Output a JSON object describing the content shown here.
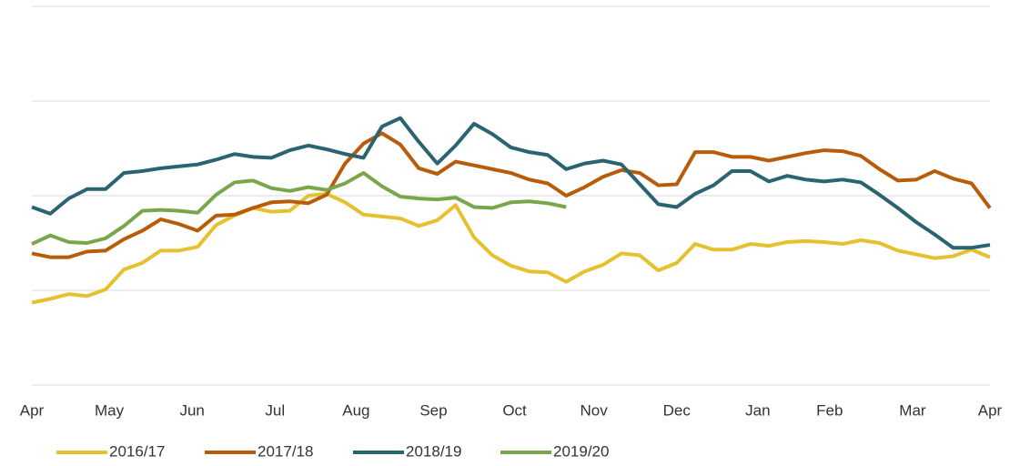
{
  "chart_data": {
    "type": "line",
    "x": [
      0,
      1,
      2,
      3,
      4,
      5,
      6,
      7,
      8,
      9,
      10,
      11,
      12,
      13,
      14,
      15,
      16,
      17,
      18,
      19,
      20,
      21,
      22,
      23,
      24,
      25,
      26,
      27,
      28,
      29,
      30,
      31,
      32,
      33,
      34,
      35,
      36,
      37,
      38,
      39,
      40,
      41,
      42,
      43,
      44,
      45,
      46,
      47,
      48,
      49,
      50,
      51,
      52
    ],
    "xlim": [
      0,
      52
    ],
    "xticks": [
      {
        "value": 0,
        "label": "Apr"
      },
      {
        "value": 4.2,
        "label": "May"
      },
      {
        "value": 8.7,
        "label": "Jun"
      },
      {
        "value": 13.2,
        "label": "Jul"
      },
      {
        "value": 17.6,
        "label": "Aug"
      },
      {
        "value": 21.8,
        "label": "Sep"
      },
      {
        "value": 26.2,
        "label": "Oct"
      },
      {
        "value": 30.5,
        "label": "Nov"
      },
      {
        "value": 35,
        "label": "Dec"
      },
      {
        "value": 39.4,
        "label": "Jan"
      },
      {
        "value": 43.3,
        "label": "Feb"
      },
      {
        "value": 47.8,
        "label": "Mar"
      },
      {
        "value": 52,
        "label": "Apr"
      }
    ],
    "ylim": [
      0,
      4
    ],
    "yticks": [
      0,
      1,
      2,
      3,
      4
    ],
    "grid": true,
    "legend": "bottom",
    "series": [
      {
        "name": "2016/17",
        "color": "#e5c12f",
        "values": [
          0.87,
          0.91,
          0.96,
          0.94,
          1.01,
          1.22,
          1.29,
          1.42,
          1.42,
          1.46,
          1.69,
          1.79,
          1.87,
          1.83,
          1.84,
          2.0,
          2.02,
          1.93,
          1.8,
          1.78,
          1.76,
          1.68,
          1.74,
          1.9,
          1.56,
          1.37,
          1.26,
          1.2,
          1.19,
          1.09,
          1.2,
          1.27,
          1.39,
          1.37,
          1.21,
          1.29,
          1.49,
          1.43,
          1.43,
          1.49,
          1.47,
          1.51,
          1.52,
          1.51,
          1.49,
          1.53,
          1.5,
          1.42,
          1.38,
          1.34,
          1.36,
          1.43,
          1.35
        ]
      },
      {
        "name": "2017/18",
        "color": "#b85c0a",
        "values": [
          1.39,
          1.35,
          1.35,
          1.41,
          1.42,
          1.54,
          1.63,
          1.75,
          1.7,
          1.63,
          1.79,
          1.8,
          1.87,
          1.93,
          1.94,
          1.92,
          2.01,
          2.34,
          2.55,
          2.66,
          2.54,
          2.29,
          2.23,
          2.36,
          2.32,
          2.28,
          2.24,
          2.17,
          2.13,
          2.0,
          2.09,
          2.2,
          2.27,
          2.24,
          2.11,
          2.12,
          2.46,
          2.46,
          2.41,
          2.41,
          2.37,
          2.41,
          2.45,
          2.48,
          2.47,
          2.42,
          2.28,
          2.16,
          2.17,
          2.26,
          2.18,
          2.13,
          1.87
        ]
      },
      {
        "name": "2018/19",
        "color": "#2a6470",
        "values": [
          1.88,
          1.81,
          1.97,
          2.07,
          2.07,
          2.24,
          2.26,
          2.29,
          2.31,
          2.33,
          2.38,
          2.44,
          2.41,
          2.4,
          2.48,
          2.53,
          2.49,
          2.44,
          2.4,
          2.73,
          2.82,
          2.57,
          2.34,
          2.53,
          2.76,
          2.65,
          2.51,
          2.46,
          2.43,
          2.28,
          2.34,
          2.37,
          2.33,
          2.12,
          1.91,
          1.88,
          2.02,
          2.11,
          2.26,
          2.26,
          2.15,
          2.21,
          2.17,
          2.15,
          2.17,
          2.14,
          2.01,
          1.87,
          1.72,
          1.59,
          1.45,
          1.45,
          1.48
        ]
      },
      {
        "name": "2019/20",
        "color": "#7aa64b",
        "values": [
          1.49,
          1.58,
          1.51,
          1.5,
          1.55,
          1.68,
          1.84,
          1.85,
          1.84,
          1.82,
          2.01,
          2.14,
          2.16,
          2.08,
          2.05,
          2.09,
          2.06,
          2.13,
          2.24,
          2.1,
          1.99,
          1.97,
          1.96,
          1.98,
          1.88,
          1.87,
          1.93,
          1.94,
          1.92,
          1.88,
          null,
          null,
          null,
          null,
          null,
          null,
          null,
          null,
          null,
          null,
          null,
          null,
          null,
          null,
          null,
          null,
          null,
          null,
          null,
          null,
          null,
          null,
          null
        ]
      }
    ]
  }
}
